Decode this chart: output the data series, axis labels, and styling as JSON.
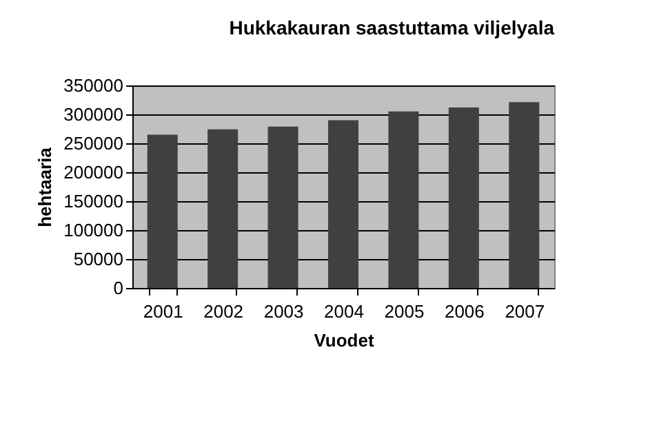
{
  "chart_data": {
    "type": "bar",
    "title": "Hukkakauran saastuttama viljelyala",
    "xlabel": "Vuodet",
    "ylabel": "hehtaaria",
    "categories": [
      "2001",
      "2002",
      "2003",
      "2004",
      "2005",
      "2006",
      "2007"
    ],
    "values": [
      265000,
      274000,
      279000,
      290000,
      305000,
      312000,
      321000
    ],
    "color": "#404040",
    "ylim": [
      0,
      350000
    ],
    "yticks": [
      0,
      50000,
      100000,
      150000,
      200000,
      250000,
      300000,
      350000
    ],
    "grid": "y"
  }
}
